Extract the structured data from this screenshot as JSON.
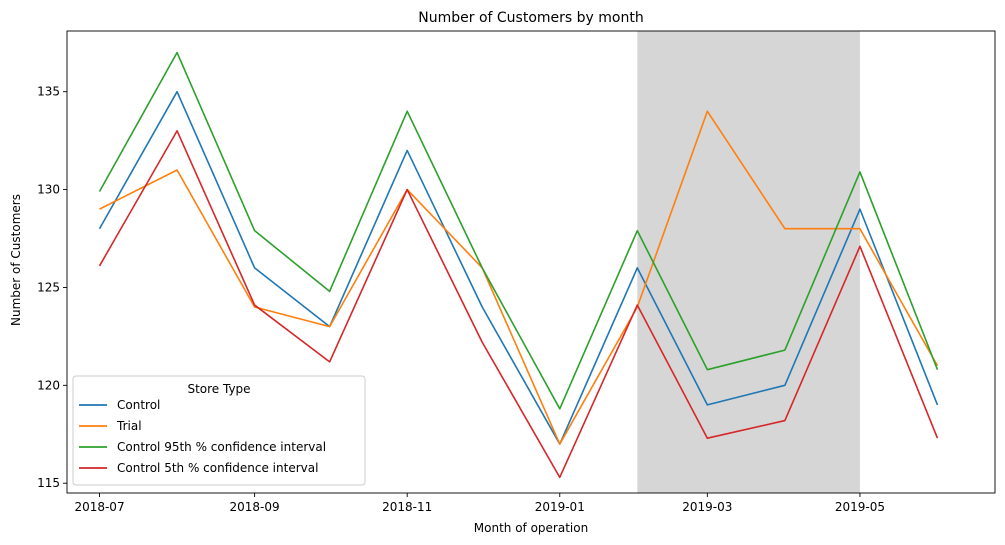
{
  "chart_data": {
    "type": "line",
    "title": "Number of Customers by month",
    "xlabel": "Month of operation",
    "ylabel": "Number of Customers",
    "x": [
      "2018-07",
      "2018-08",
      "2018-09",
      "2018-10",
      "2018-11",
      "2018-12",
      "2019-01",
      "2019-02",
      "2019-03",
      "2019-04",
      "2019-05",
      "2019-06"
    ],
    "xticks": [
      "2018-07",
      "2018-09",
      "2018-11",
      "2019-01",
      "2019-03",
      "2019-05"
    ],
    "yticks": [
      115,
      120,
      125,
      130,
      135
    ],
    "ylim": [
      114.5,
      138.1
    ],
    "xlim": [
      "2018-06-18",
      "2019-06-24"
    ],
    "shaded_region": {
      "start": "2019-02",
      "end": "2019-05",
      "color": "#d6d6d6"
    },
    "grid": false,
    "legend": {
      "title": "Store Type",
      "placement": "lower-left"
    },
    "series": [
      {
        "name": "Control",
        "color": "#1f77b4",
        "values": [
          128,
          135,
          126,
          123,
          132,
          124,
          117,
          126,
          119,
          120,
          129,
          119
        ]
      },
      {
        "name": "Trial",
        "color": "#ff7f0e",
        "values": [
          129,
          131,
          124,
          123,
          130,
          126,
          117,
          124,
          134,
          128,
          128,
          121
        ]
      },
      {
        "name": "Control 95th % confidence interval",
        "color": "#2ca02c",
        "values": [
          129.9,
          137,
          127.9,
          124.8,
          134,
          126,
          118.8,
          127.9,
          120.8,
          121.8,
          130.9,
          120.8
        ]
      },
      {
        "name": "Control 5th % confidence interval",
        "color": "#d62728",
        "values": [
          126.1,
          133,
          124.1,
          121.2,
          130,
          122.2,
          115.3,
          124.1,
          117.3,
          118.2,
          127.1,
          117.3
        ]
      }
    ]
  }
}
